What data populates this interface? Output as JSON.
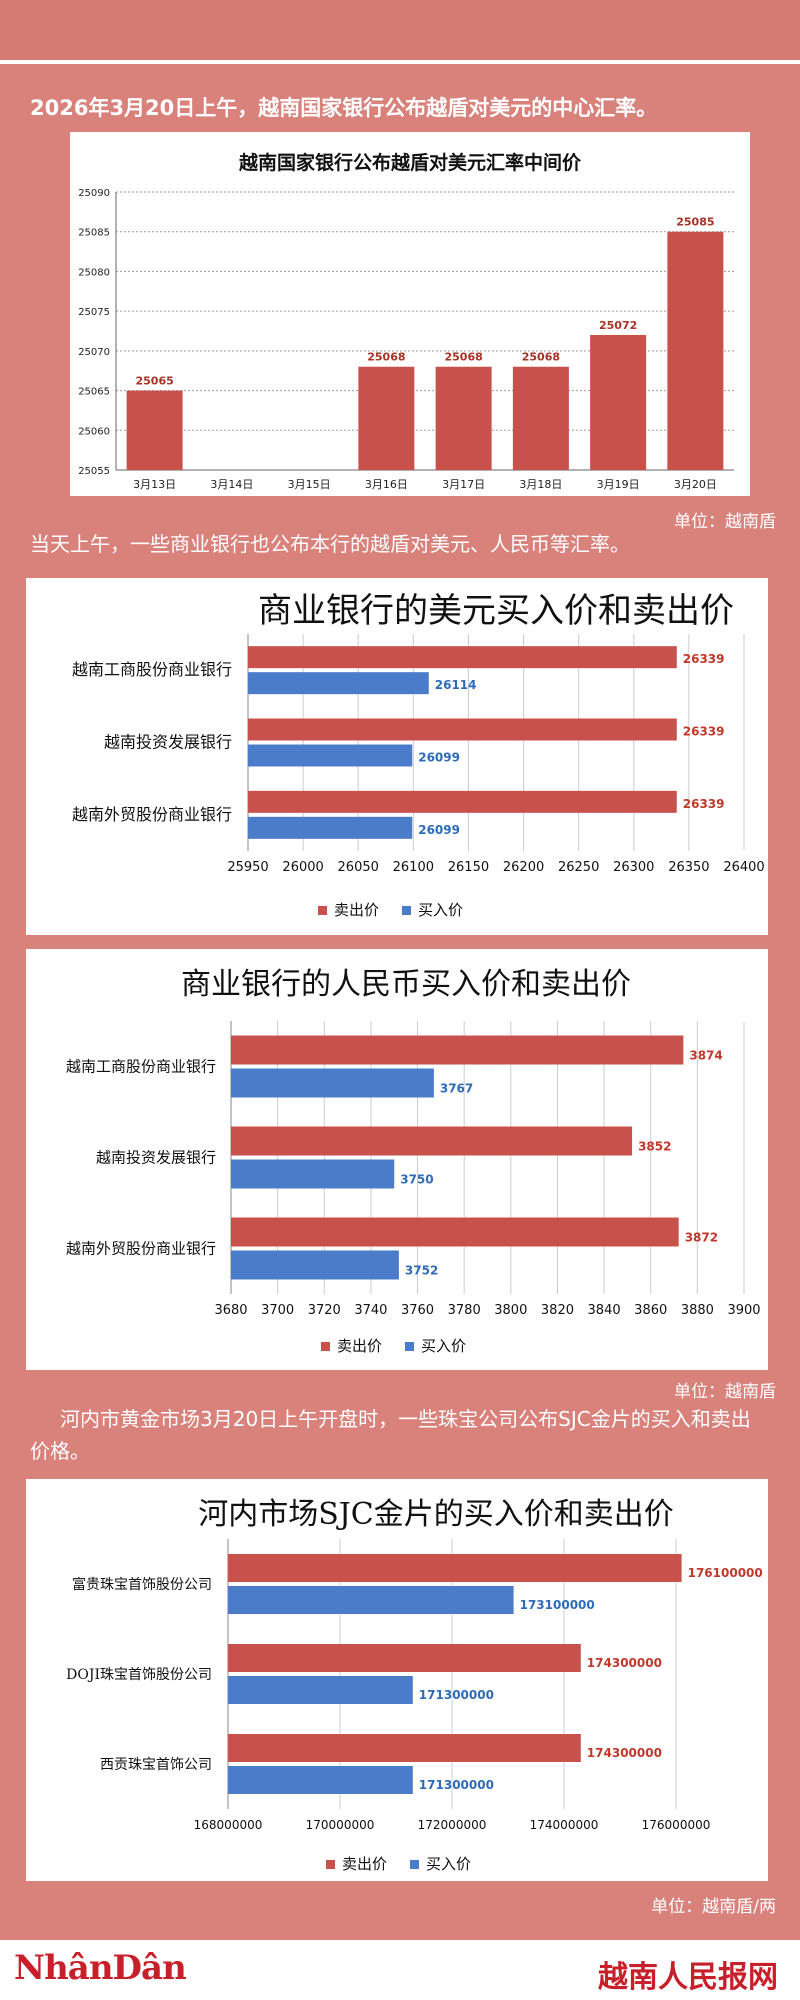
{
  "intro1": "2026年3月20日上午，越南国家银行公布越盾对美元的中心汇率。",
  "intro2": "当天上午，一些商业银行也公布本行的越盾对美元、人民币等汇率。",
  "intro3": "河内市黄金市场3月20日上午开盘时，一些珠宝公司公布SJC金片的买入和卖出价格。",
  "unit1": "单位：越南盾",
  "unit2": "单位：越南盾",
  "unit3": "单位：越南盾/两",
  "footer": {
    "left_logo": "NhânDân",
    "right_logo": "越南人民报网"
  },
  "colors": {
    "sell": "#c9514c",
    "buy": "#4a7cc9",
    "sell_label": "#c0392b",
    "buy_label": "#2e6bb8"
  },
  "chart_data": [
    {
      "type": "bar",
      "title": "越南国家银行公布越盾对美元汇率中间价",
      "categories": [
        "3月13日",
        "3月14日",
        "3月15日",
        "3月16日",
        "3月17日",
        "3月18日",
        "3月19日",
        "3月20日"
      ],
      "values": [
        25065,
        null,
        null,
        25068,
        25068,
        25068,
        25072,
        25085
      ],
      "value_labels": [
        "25065",
        "",
        "",
        "25068",
        "25068",
        "25068",
        "25072",
        "25085"
      ],
      "ylim": [
        25055,
        25090
      ],
      "yticks": [
        "25055",
        "25060",
        "25065",
        "25070",
        "25075",
        "25080",
        "25085",
        "25090"
      ],
      "grid": true
    },
    {
      "type": "bar",
      "orientation": "horizontal",
      "title": "商业银行的美元买入价和卖出价",
      "categories": [
        "越南工商股份商业银行",
        "越南投资发展银行",
        "越南外贸股份商业银行"
      ],
      "series": [
        {
          "name": "卖出价",
          "values": [
            26339,
            26339,
            26339
          ],
          "labels": [
            "26339",
            "26339",
            "26339"
          ]
        },
        {
          "name": "买入价",
          "values": [
            26114,
            26099,
            26099
          ],
          "labels": [
            "26114",
            "26099",
            "26099"
          ]
        }
      ],
      "xlim": [
        25950,
        26400
      ],
      "xticks": [
        "25950",
        "26000",
        "26050",
        "26100",
        "26150",
        "26200",
        "26250",
        "26300",
        "26350",
        "26400"
      ],
      "legend": "bottom"
    },
    {
      "type": "bar",
      "orientation": "horizontal",
      "title": "商业银行的人民币买入价和卖出价",
      "categories": [
        "越南工商股份商业银行",
        "越南投资发展银行",
        "越南外贸股份商业银行"
      ],
      "series": [
        {
          "name": "卖出价",
          "values": [
            3874,
            3852,
            3872
          ],
          "labels": [
            "3874",
            "3852",
            "3872"
          ]
        },
        {
          "name": "买入价",
          "values": [
            3767,
            3750,
            3752
          ],
          "labels": [
            "3767",
            "3750",
            "3752"
          ]
        }
      ],
      "xlim": [
        3680,
        3900
      ],
      "xticks": [
        "3680",
        "3700",
        "3720",
        "3740",
        "3760",
        "3780",
        "3800",
        "3820",
        "3840",
        "3860",
        "3880",
        "3900"
      ],
      "legend": "bottom"
    },
    {
      "type": "bar",
      "orientation": "horizontal",
      "title": "河内市场SJC金片的买入价和卖出价",
      "categories": [
        "富贵珠宝首饰股份公司",
        "DOJI珠宝首饰股份公司",
        "西贡珠宝首饰公司"
      ],
      "series": [
        {
          "name": "卖出价",
          "values": [
            176100000,
            174300000,
            174300000
          ],
          "labels": [
            "176100000",
            "174300000",
            "174300000"
          ]
        },
        {
          "name": "买入价",
          "values": [
            173100000,
            171300000,
            171300000
          ],
          "labels": [
            "173100000",
            "171300000",
            "171300000"
          ]
        }
      ],
      "xlim": [
        168000000,
        176000000
      ],
      "xticks": [
        "168000000",
        "170000000",
        "172000000",
        "174000000",
        "176000000"
      ],
      "legend": "bottom"
    }
  ]
}
